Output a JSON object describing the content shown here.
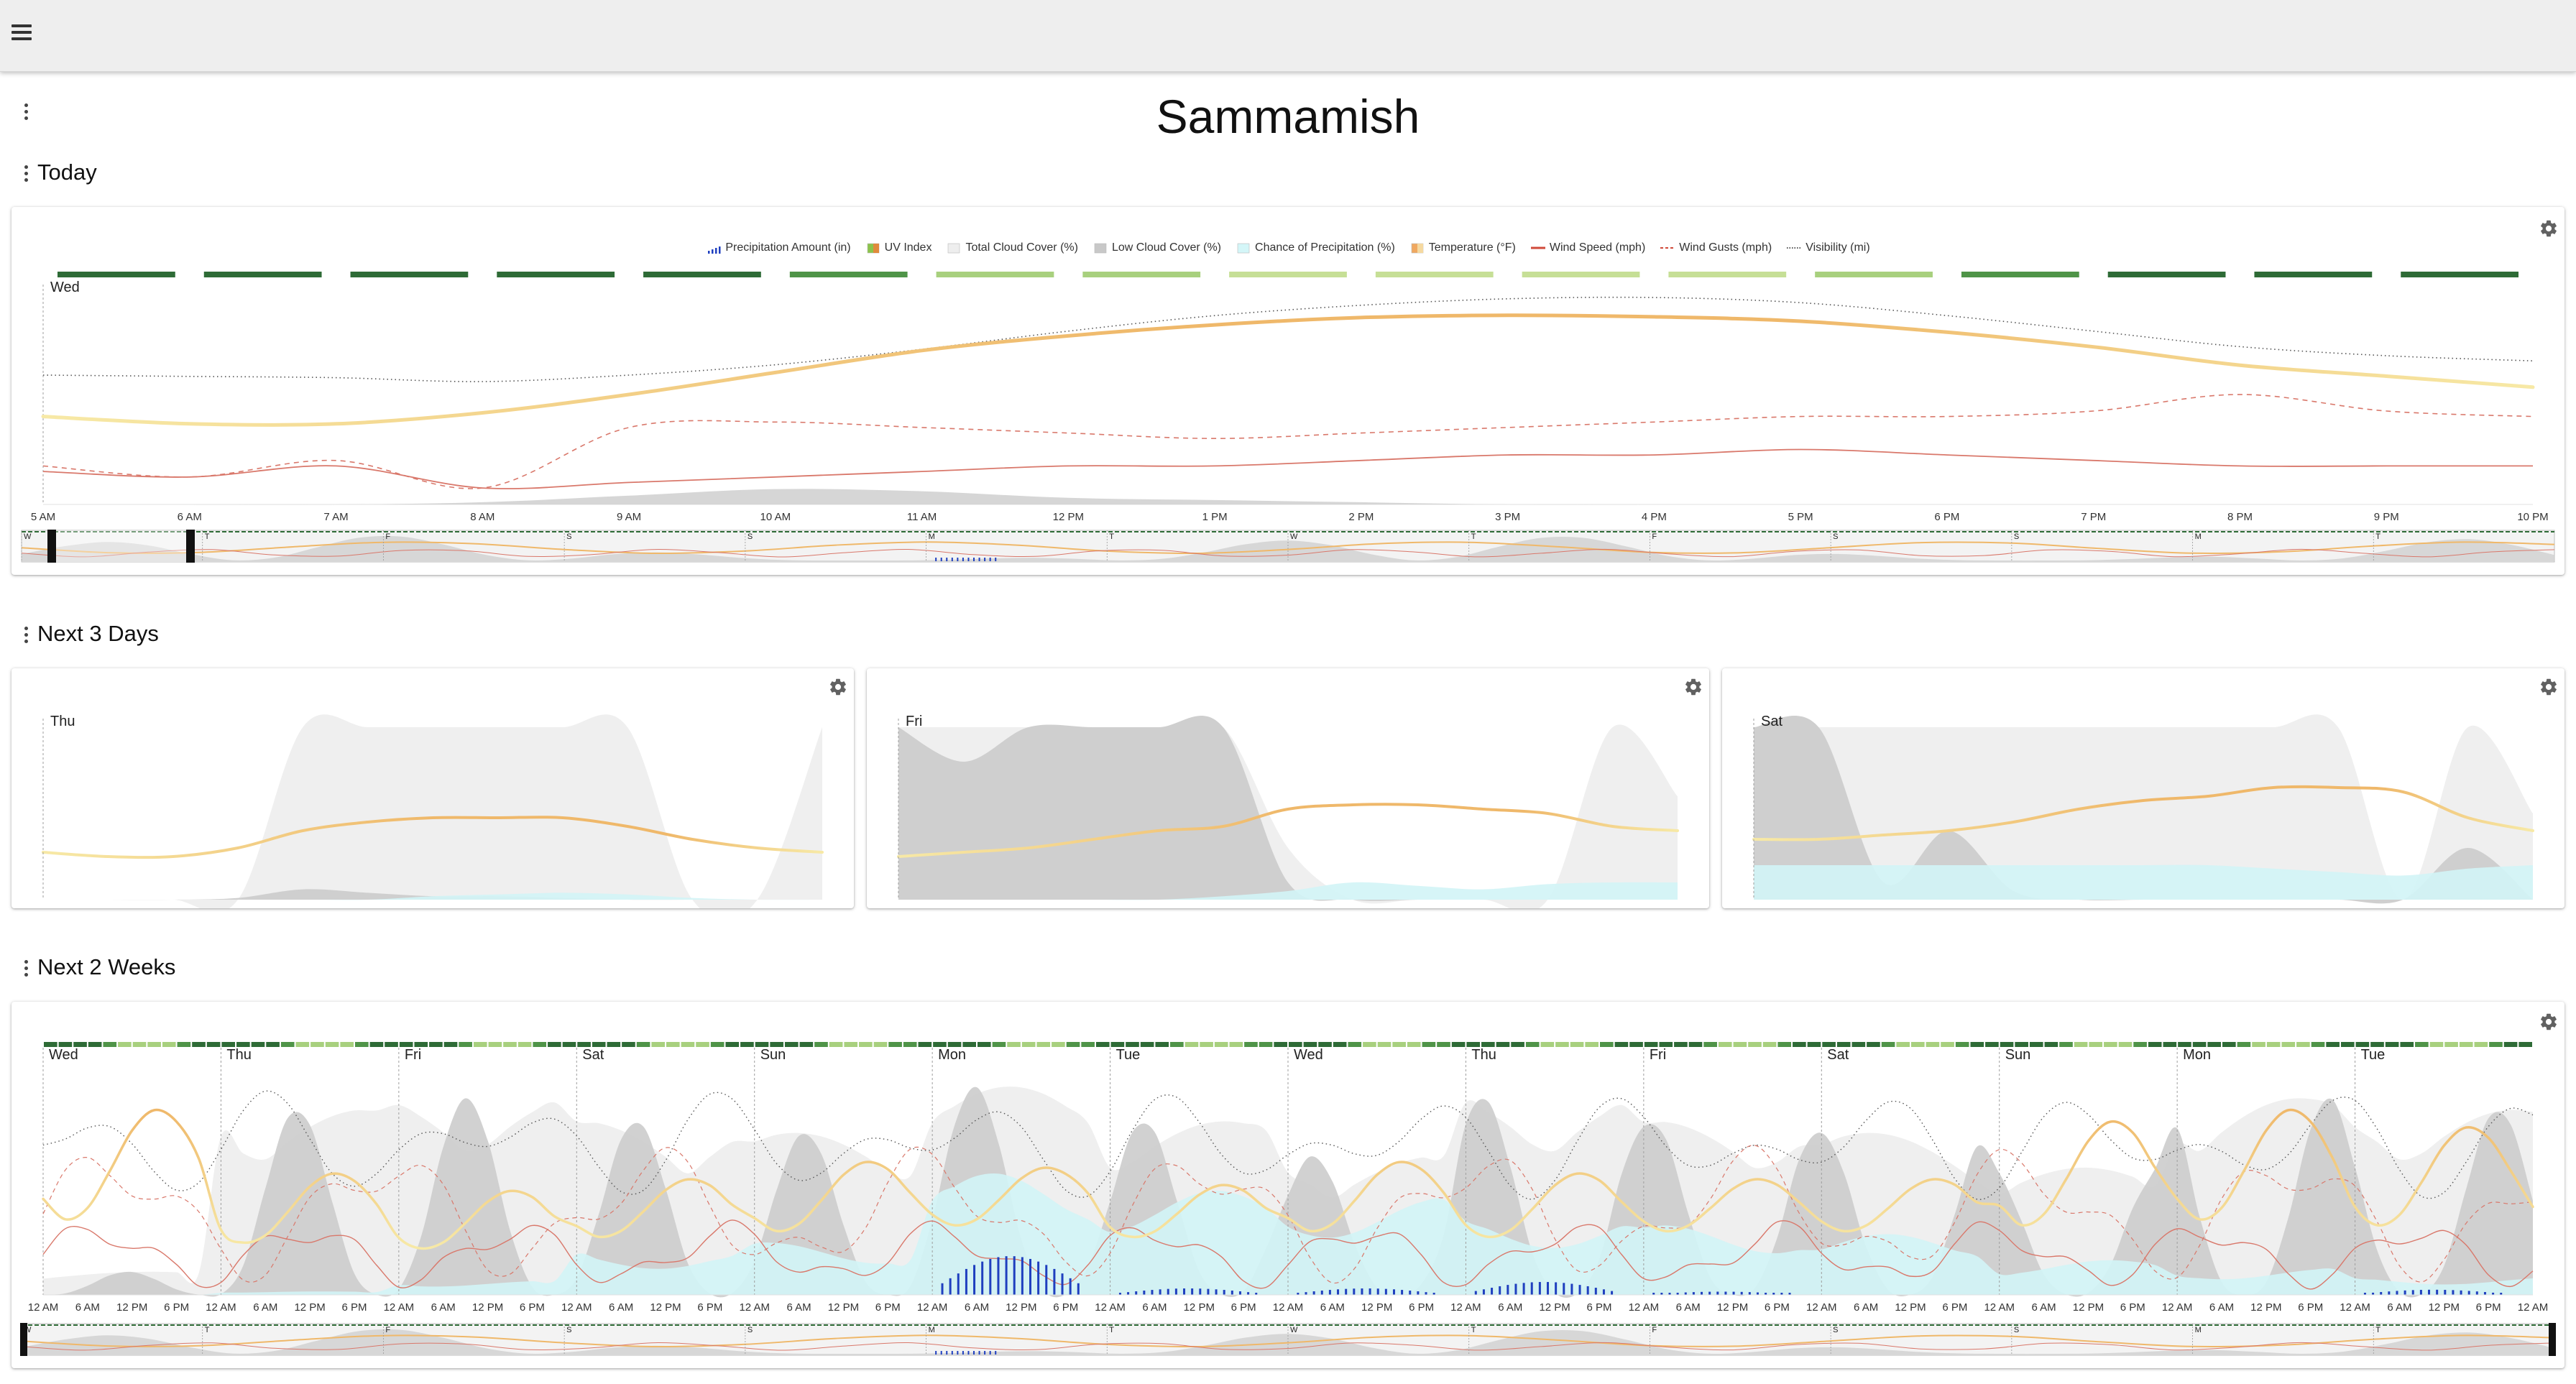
{
  "page": {
    "title": "Sammamish"
  },
  "sections": {
    "today": "Today",
    "next3": "Next 3 Days",
    "next2w": "Next 2 Weeks"
  },
  "legend": [
    {
      "label": "Precipitation Amount (in)",
      "icon": "bars-icon",
      "color": "#1f3fbf"
    },
    {
      "label": "UV Index",
      "icon": "uv-swatch-icon",
      "color": "#8bc34a"
    },
    {
      "label": "Total Cloud Cover (%)",
      "icon": "swatch-icon",
      "color": "#eeeeee"
    },
    {
      "label": "Low Cloud Cover (%)",
      "icon": "swatch-icon",
      "color": "#c8c8c8"
    },
    {
      "label": "Chance of Precipitation (%)",
      "icon": "swatch-icon",
      "color": "#d4f6f8"
    },
    {
      "label": "Temperature (°F)",
      "icon": "temp-swatch-icon",
      "color": "#f0a860"
    },
    {
      "label": "Wind Speed (mph)",
      "icon": "line-icon",
      "color": "#d04a3a"
    },
    {
      "label": "Wind Gusts (mph)",
      "icon": "dash-line-icon",
      "color": "#d04a3a"
    },
    {
      "label": "Visibility (mi)",
      "icon": "dotted-line-icon",
      "color": "#555555"
    }
  ],
  "colors": {
    "uv_dark": "#2e6b36",
    "uv_mid": "#4f9448",
    "uv_light": "#a8d07e",
    "uv_pale": "#c6df96",
    "temp_warm": "#efb86a",
    "temp_cool": "#f7e9a6",
    "wind": "#d9786b",
    "cloud_total": "#efefef",
    "cloud_low": "#cccccc",
    "precip_chance": "#d2f4f6",
    "precip": "#1f3fbf"
  },
  "chart_data": [
    {
      "id": "today",
      "type": "line",
      "day_label": "Wed",
      "x_ticks": [
        "5 AM",
        "6 AM",
        "7 AM",
        "8 AM",
        "9 AM",
        "10 AM",
        "11 AM",
        "12 PM",
        "1 PM",
        "2 PM",
        "3 PM",
        "4 PM",
        "5 PM",
        "6 PM",
        "7 PM",
        "8 PM",
        "9 PM",
        "10 PM"
      ],
      "x_hours": [
        5,
        6,
        7,
        8,
        9,
        10,
        11,
        12,
        13,
        14,
        15,
        16,
        17,
        18,
        19,
        20,
        21,
        22
      ],
      "uv_index": [
        1,
        1,
        1,
        1,
        1,
        2,
        3,
        4,
        5,
        6,
        6,
        5,
        3,
        2,
        1,
        1,
        1,
        1
      ],
      "series": [
        {
          "key": "visibility",
          "x": [
            5,
            6,
            7,
            8,
            9,
            10,
            11,
            12,
            13,
            14,
            15,
            16,
            17,
            18,
            19,
            20,
            21,
            22
          ],
          "values": [
            10,
            9.9,
            9.8,
            9.5,
            10,
            10.8,
            12,
            13.4,
            14.6,
            15.4,
            15.9,
            16,
            15.6,
            14.6,
            13.4,
            12.2,
            11.5,
            11.1
          ]
        },
        {
          "key": "temperature",
          "x": [
            5,
            6,
            7,
            8,
            9,
            10,
            11,
            12,
            13,
            14,
            15,
            16,
            17,
            18,
            19,
            20,
            21,
            22
          ],
          "values": [
            52,
            51,
            51,
            52.5,
            55,
            58,
            61,
            63,
            64.5,
            65.5,
            65.8,
            65.6,
            65,
            63.5,
            61.5,
            59,
            57.5,
            56
          ]
        },
        {
          "key": "wind_gusts",
          "x": [
            5,
            6,
            7,
            8,
            9,
            10,
            11,
            12,
            13,
            14,
            15,
            16,
            17,
            18,
            19,
            20,
            21,
            22
          ],
          "values": [
            7,
            5,
            8,
            3,
            14,
            15,
            14,
            13,
            12,
            13,
            14,
            15,
            16,
            16,
            17,
            20,
            17,
            16
          ]
        },
        {
          "key": "wind_speed",
          "x": [
            5,
            6,
            7,
            8,
            9,
            10,
            11,
            12,
            13,
            14,
            15,
            16,
            17,
            18,
            19,
            20,
            21,
            22
          ],
          "values": [
            6,
            5,
            7,
            3,
            4,
            5,
            6,
            7,
            7,
            8,
            9,
            9,
            10,
            9,
            8,
            7,
            7,
            7
          ]
        },
        {
          "key": "cloud_low",
          "x": [
            5,
            6,
            7,
            8,
            9,
            10,
            11,
            12,
            13,
            14,
            15,
            16,
            17,
            18,
            19,
            20,
            21,
            22
          ],
          "values": [
            0,
            0,
            0,
            1,
            4,
            7,
            6,
            3,
            2,
            1,
            0,
            0,
            0,
            0,
            0,
            0,
            0,
            0
          ]
        }
      ],
      "yrange": {
        "visibility": [
          0,
          17
        ],
        "temperature": [
          40,
          70
        ],
        "wind": [
          0,
          40
        ],
        "cloud": [
          0,
          100
        ]
      }
    },
    {
      "id": "thu",
      "type": "area",
      "day_label": "Thu",
      "x_hours": [
        0,
        2,
        4,
        6,
        8,
        10,
        12,
        14,
        16,
        18,
        20,
        22,
        24
      ],
      "series": [
        {
          "key": "cloud_total",
          "values": [
            0,
            0,
            0,
            0,
            100,
            100,
            100,
            100,
            100,
            100,
            0,
            0,
            100
          ]
        },
        {
          "key": "cloud_low",
          "values": [
            0,
            0,
            0,
            1,
            6,
            4,
            2,
            2,
            1,
            0,
            0,
            0,
            0
          ]
        },
        {
          "key": "precip_chance",
          "values": [
            0,
            0,
            0,
            0,
            0,
            0,
            2,
            3,
            4,
            3,
            1,
            0,
            0
          ]
        },
        {
          "key": "temperature",
          "values": [
            51,
            50,
            50,
            52,
            56,
            58,
            59,
            59,
            59,
            57,
            54,
            52,
            51
          ]
        }
      ],
      "yrange": {
        "temperature": [
          40,
          80
        ],
        "cloud": [
          0,
          100
        ]
      }
    },
    {
      "id": "fri",
      "type": "area",
      "day_label": "Fri",
      "x_hours": [
        0,
        2,
        4,
        6,
        8,
        10,
        12,
        14,
        16,
        18,
        20,
        22,
        24
      ],
      "series": [
        {
          "key": "cloud_total",
          "values": [
            100,
            100,
            100,
            100,
            100,
            100,
            30,
            0,
            0,
            0,
            0,
            100,
            60
          ]
        },
        {
          "key": "cloud_low",
          "values": [
            100,
            80,
            100,
            100,
            100,
            100,
            10,
            0,
            0,
            0,
            0,
            0,
            0
          ]
        },
        {
          "key": "precip_chance",
          "values": [
            0,
            0,
            0,
            0,
            0,
            2,
            5,
            10,
            8,
            6,
            9,
            10,
            10
          ]
        },
        {
          "key": "temperature",
          "values": [
            50,
            51,
            52,
            54,
            56,
            57,
            61,
            62,
            62,
            61,
            60,
            57,
            56
          ]
        }
      ],
      "yrange": {
        "temperature": [
          40,
          80
        ],
        "cloud": [
          0,
          100
        ]
      }
    },
    {
      "id": "sat",
      "type": "area",
      "day_label": "Sat",
      "x_hours": [
        0,
        2,
        4,
        6,
        8,
        10,
        12,
        14,
        16,
        18,
        20,
        22,
        24
      ],
      "series": [
        {
          "key": "cloud_total",
          "values": [
            100,
            100,
            100,
            100,
            100,
            100,
            100,
            100,
            100,
            100,
            0,
            100,
            50
          ]
        },
        {
          "key": "cloud_low",
          "values": [
            100,
            100,
            10,
            40,
            5,
            0,
            0,
            0,
            0,
            0,
            0,
            30,
            0
          ]
        },
        {
          "key": "precip_chance",
          "values": [
            20,
            20,
            20,
            20,
            20,
            20,
            20,
            20,
            18,
            16,
            14,
            18,
            20
          ]
        },
        {
          "key": "temperature",
          "values": [
            54,
            54,
            55,
            56,
            58,
            61,
            63,
            64,
            66,
            66,
            65,
            59,
            56
          ]
        }
      ],
      "yrange": {
        "temperature": [
          40,
          80
        ],
        "cloud": [
          0,
          100
        ]
      }
    },
    {
      "id": "two_weeks",
      "type": "line",
      "day_labels": [
        "Wed",
        "Thu",
        "Fri",
        "Sat",
        "Sun",
        "Mon",
        "Tue",
        "Wed",
        "Thu",
        "Fri",
        "Sat",
        "Sun",
        "Mon",
        "Tue"
      ],
      "tick_cycle": [
        "12 AM",
        "6 AM",
        "12 PM",
        "6 PM"
      ],
      "final_tick": "12 AM",
      "daily_temp_high": [
        72,
        61,
        58,
        60,
        63,
        62,
        59,
        63,
        61,
        60,
        60,
        70,
        72,
        69
      ],
      "daily_temp_low": [
        53,
        49,
        48,
        50,
        51,
        52,
        50,
        51,
        50,
        51,
        51,
        52,
        53,
        52
      ],
      "daily_precip_chance": [
        0,
        2,
        8,
        25,
        30,
        70,
        60,
        55,
        45,
        40,
        35,
        20,
        15,
        10
      ],
      "daily_cloud_total": [
        10,
        80,
        85,
        75,
        70,
        90,
        75,
        60,
        85,
        75,
        70,
        55,
        85,
        80
      ],
      "daily_precip_in": [
        0,
        0,
        0,
        0,
        0,
        0.06,
        0.01,
        0.01,
        0.02,
        0.005,
        0,
        0,
        0,
        0.008
      ]
    }
  ]
}
